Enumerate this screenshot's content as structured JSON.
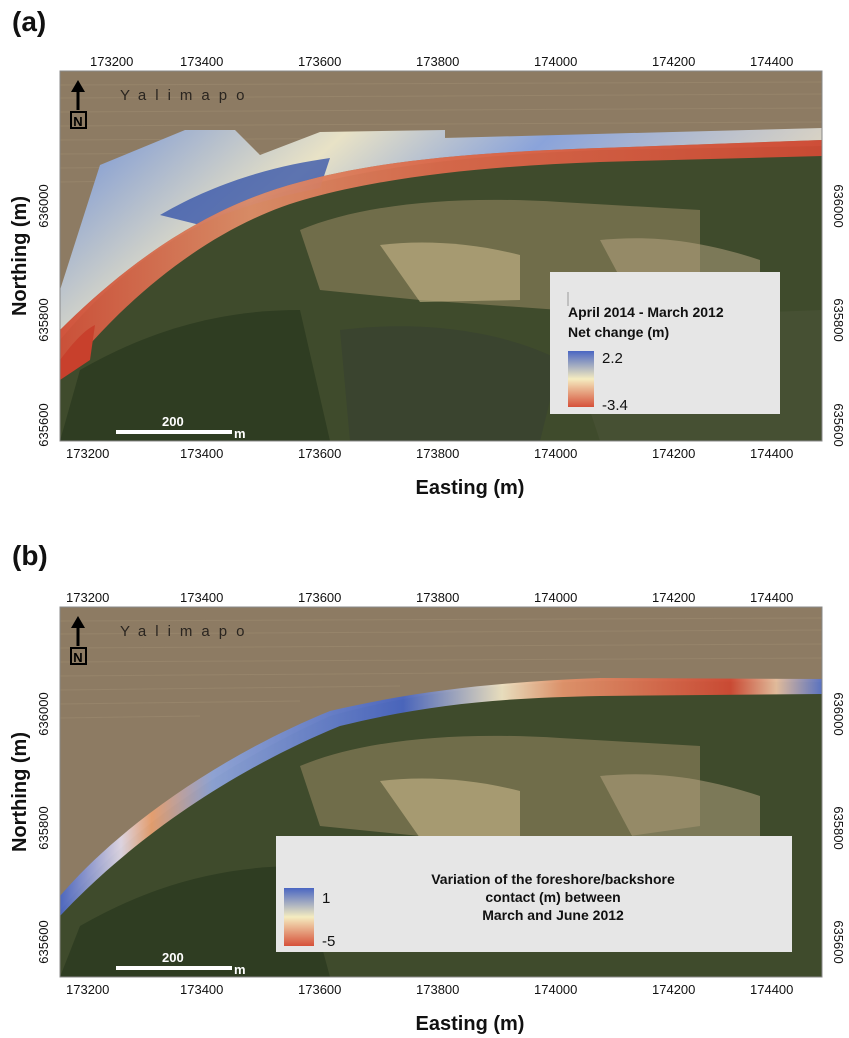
{
  "panels": [
    {
      "id": "a",
      "letter": "(a)",
      "place_name": "Yalimapo",
      "north_label": "N",
      "x_ticks": [
        "173200",
        "173400",
        "173600",
        "173800",
        "174000",
        "174200",
        "174400"
      ],
      "y_ticks": [
        "636000",
        "635800",
        "635600"
      ],
      "x_title": "Easting (m)",
      "y_title": "Northing (m)",
      "scale_value": "200",
      "scale_unit": "m",
      "legend": {
        "line1": "April 2014 - March 2012",
        "line2": "Net change (m)",
        "max": "2.2",
        "min": "-3.4"
      }
    },
    {
      "id": "b",
      "letter": "(b)",
      "place_name": "Yalimapo",
      "north_label": "N",
      "x_ticks": [
        "173200",
        "173400",
        "173600",
        "173800",
        "174000",
        "174200",
        "174400"
      ],
      "y_ticks": [
        "636000",
        "635800",
        "635600"
      ],
      "x_title": "Easting (m)",
      "y_title": "Northing (m)",
      "scale_value": "200",
      "scale_unit": "m",
      "legend": {
        "line1": "Variation of the foreshore/backshore",
        "line2": "contact (m) between",
        "line3": "March and June 2012",
        "max": "1",
        "min": "-5"
      }
    }
  ],
  "colors": {
    "sea": "#8d7b63",
    "land": "#3f4b2c",
    "ramp_high": "#4a66c2",
    "ramp_mid": "#f5ecc0",
    "ramp_low": "#d6513a"
  }
}
